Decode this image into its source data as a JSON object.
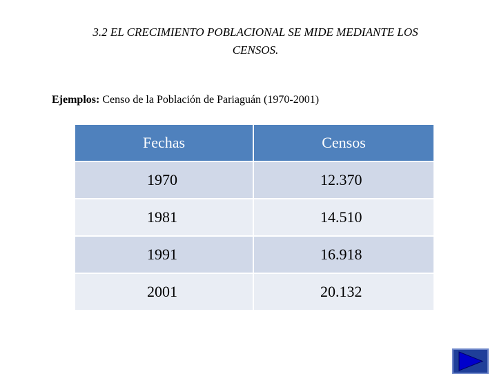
{
  "slide": {
    "title_line1": "3.2 EL CRECIMIENTO POBLACIONAL SE MIDE MEDIANTE LOS",
    "title_line2": "CENSOS.",
    "subtitle_bold": "Ejemplos:",
    "subtitle_rest": " Censo de la Población de Pariaguán (1970-2001)"
  },
  "table": {
    "headers": [
      "Fechas",
      "Censos"
    ],
    "rows": [
      [
        "1970",
        "12.370"
      ],
      [
        "1981",
        "14.510"
      ],
      [
        "1991",
        "16.918"
      ],
      [
        "2001",
        "20.132"
      ]
    ]
  },
  "nav": {
    "icon": "play-next-icon",
    "colors": {
      "button": "#1f3f99",
      "arrow": "#0000cc"
    }
  },
  "colors": {
    "header_bg": "#4f81bd",
    "row_odd": "#d0d8e8",
    "row_even": "#e9edf4"
  }
}
